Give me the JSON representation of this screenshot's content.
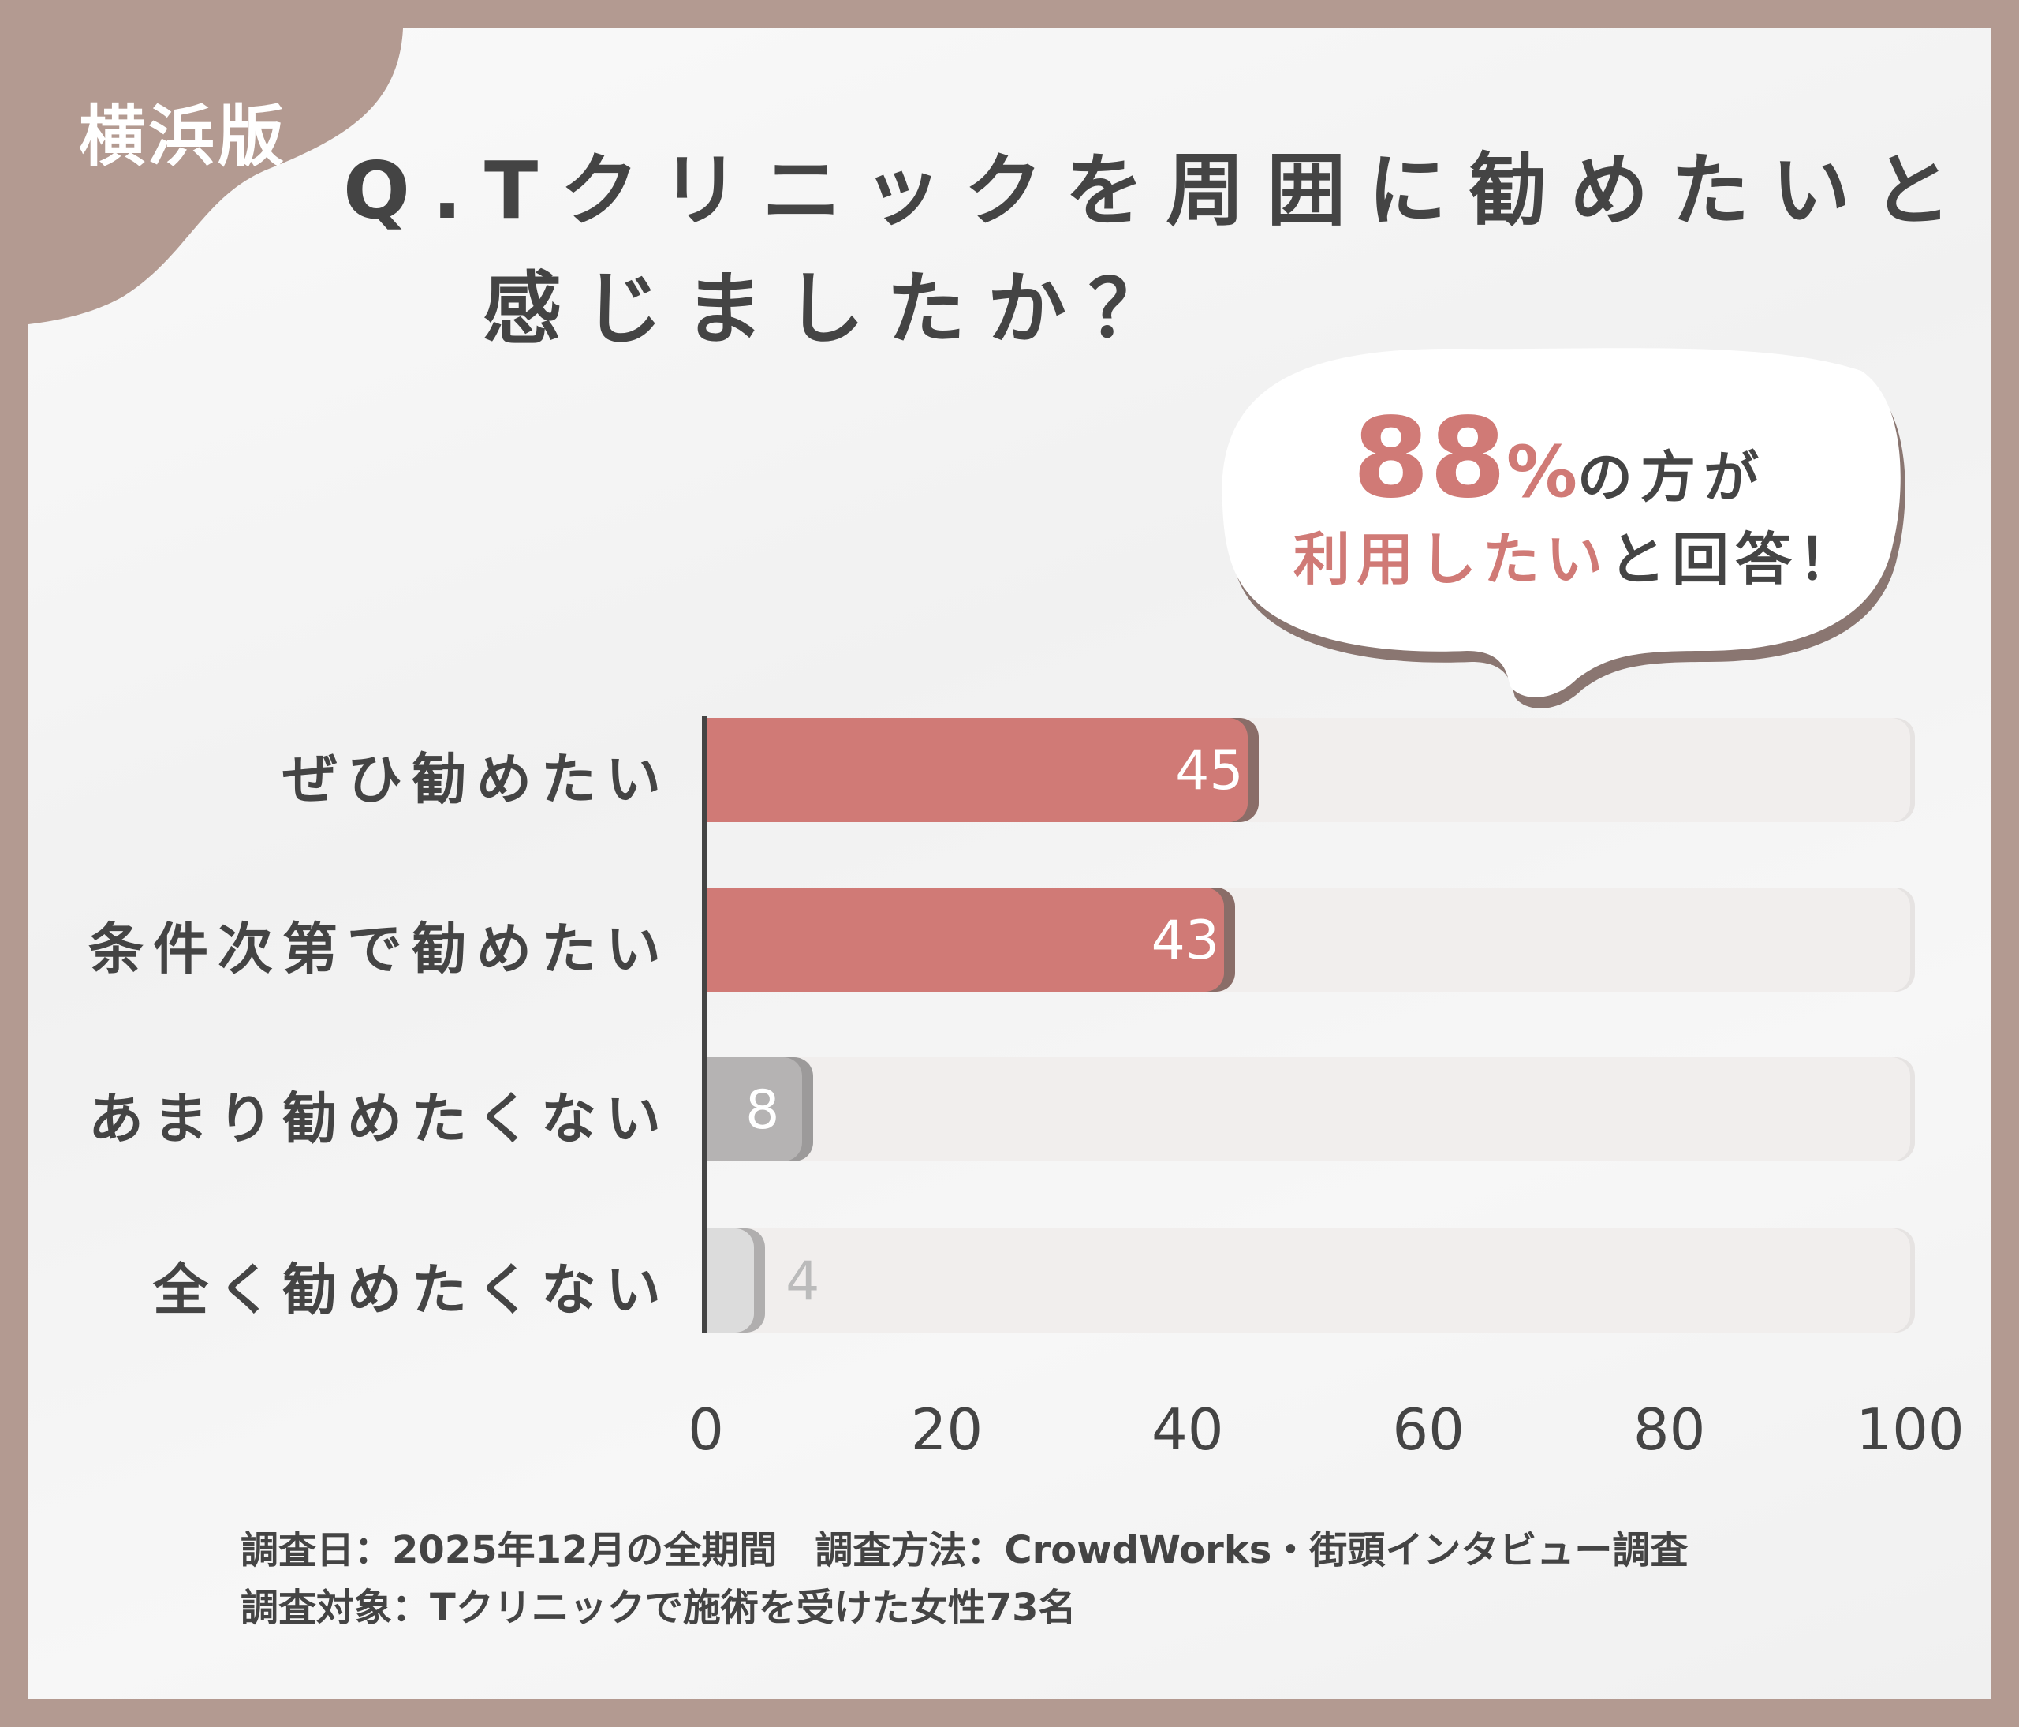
{
  "tag": "横浜版",
  "title": {
    "line1": "Q.Tクリニックを周囲に勧めたいと",
    "line2": "感じましたか？"
  },
  "callout": {
    "percent": "88",
    "percent_sign": "%",
    "line1_rest": "の方が",
    "line2_highlight": "利用したい",
    "line2_rest": "と回答！"
  },
  "colors": {
    "frame": "#b39a91",
    "primary_bar": "#d07a76",
    "secondary_bar": "#b5b3b3",
    "tertiary_bar": "#dcdcdc",
    "track": "#f1eeed",
    "text": "#444444"
  },
  "chart_data": {
    "type": "bar",
    "orientation": "horizontal",
    "categories": [
      "ぜひ勧めたい",
      "条件次第で勧めたい",
      "あまり勧めたくない",
      "全く勧めたくない"
    ],
    "values": [
      45,
      43,
      8,
      4
    ],
    "value_labels": [
      "45",
      "43",
      "8",
      "4"
    ],
    "xlim": [
      0,
      100
    ],
    "xticks": [
      "0",
      "20",
      "40",
      "60",
      "80",
      "100"
    ],
    "grid": false
  },
  "footer": {
    "line1": "調査日：2025年12月の全期間　調査方法：CrowdWorks・街頭インタビュー調査",
    "line2": "調査対象：Tクリニックで施術を受けた女性73名"
  }
}
